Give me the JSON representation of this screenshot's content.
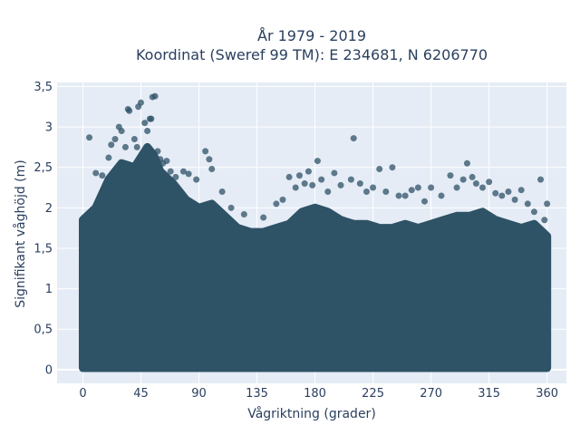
{
  "chart_data": {
    "type": "scatter",
    "title_line1": "År 1979 - 2019",
    "title_line2": "Koordinat (Sweref 99 TM): E 234681, N 6206770",
    "xlabel": "Vågriktning (grader)",
    "ylabel": "Signifikant våghöjd (m)",
    "xlim": [
      -20,
      375
    ],
    "ylim": [
      -0.17,
      3.55
    ],
    "xticks": [
      0,
      45,
      90,
      135,
      180,
      225,
      270,
      315,
      360
    ],
    "yticks": [
      0,
      0.5,
      1,
      1.5,
      2,
      2.5,
      3,
      3.5
    ],
    "ytick_labels": [
      "0",
      "0,5",
      "1",
      "1,5",
      "2",
      "2,5",
      "3",
      "3,5"
    ],
    "grid": true,
    "marker_color": "#2e5266",
    "background_color": "#e5ecf6",
    "upper_envelope": [
      [
        0,
        1.85
      ],
      [
        10,
        2.0
      ],
      [
        20,
        2.35
      ],
      [
        30,
        2.55
      ],
      [
        40,
        2.5
      ],
      [
        50,
        2.75
      ],
      [
        55,
        2.65
      ],
      [
        60,
        2.45
      ],
      [
        70,
        2.3
      ],
      [
        80,
        2.1
      ],
      [
        90,
        2.0
      ],
      [
        100,
        2.05
      ],
      [
        110,
        1.9
      ],
      [
        120,
        1.75
      ],
      [
        130,
        1.7
      ],
      [
        140,
        1.7
      ],
      [
        150,
        1.75
      ],
      [
        160,
        1.8
      ],
      [
        170,
        1.95
      ],
      [
        180,
        2.0
      ],
      [
        190,
        1.95
      ],
      [
        200,
        1.85
      ],
      [
        210,
        1.8
      ],
      [
        220,
        1.8
      ],
      [
        230,
        1.75
      ],
      [
        240,
        1.75
      ],
      [
        250,
        1.8
      ],
      [
        260,
        1.75
      ],
      [
        270,
        1.8
      ],
      [
        280,
        1.85
      ],
      [
        290,
        1.9
      ],
      [
        300,
        1.9
      ],
      [
        310,
        1.95
      ],
      [
        320,
        1.85
      ],
      [
        330,
        1.8
      ],
      [
        340,
        1.75
      ],
      [
        350,
        1.8
      ],
      [
        360,
        1.65
      ]
    ],
    "outlier_points": [
      [
        5,
        2.87
      ],
      [
        10,
        2.43
      ],
      [
        15,
        2.4
      ],
      [
        20,
        2.62
      ],
      [
        22,
        2.78
      ],
      [
        25,
        2.85
      ],
      [
        28,
        3.0
      ],
      [
        30,
        2.95
      ],
      [
        33,
        2.75
      ],
      [
        35,
        3.22
      ],
      [
        36,
        3.2
      ],
      [
        40,
        2.85
      ],
      [
        42,
        2.75
      ],
      [
        43,
        3.25
      ],
      [
        45,
        3.3
      ],
      [
        48,
        3.05
      ],
      [
        50,
        2.95
      ],
      [
        52,
        3.1
      ],
      [
        53,
        3.1
      ],
      [
        54,
        3.37
      ],
      [
        56,
        3.38
      ],
      [
        58,
        2.7
      ],
      [
        60,
        2.6
      ],
      [
        62,
        2.55
      ],
      [
        65,
        2.58
      ],
      [
        68,
        2.45
      ],
      [
        72,
        2.38
      ],
      [
        78,
        2.45
      ],
      [
        82,
        2.42
      ],
      [
        88,
        2.35
      ],
      [
        95,
        2.7
      ],
      [
        98,
        2.6
      ],
      [
        100,
        2.48
      ],
      [
        108,
        2.2
      ],
      [
        115,
        2.0
      ],
      [
        125,
        1.92
      ],
      [
        140,
        1.88
      ],
      [
        150,
        2.05
      ],
      [
        155,
        2.1
      ],
      [
        160,
        2.38
      ],
      [
        165,
        2.25
      ],
      [
        168,
        2.4
      ],
      [
        172,
        2.3
      ],
      [
        175,
        2.45
      ],
      [
        178,
        2.28
      ],
      [
        182,
        2.58
      ],
      [
        185,
        2.35
      ],
      [
        190,
        2.2
      ],
      [
        195,
        2.43
      ],
      [
        200,
        2.28
      ],
      [
        208,
        2.35
      ],
      [
        210,
        2.86
      ],
      [
        215,
        2.3
      ],
      [
        220,
        2.2
      ],
      [
        225,
        2.25
      ],
      [
        230,
        2.48
      ],
      [
        235,
        2.2
      ],
      [
        240,
        2.5
      ],
      [
        245,
        2.15
      ],
      [
        250,
        2.15
      ],
      [
        255,
        2.22
      ],
      [
        260,
        2.25
      ],
      [
        265,
        2.08
      ],
      [
        270,
        2.25
      ],
      [
        278,
        2.15
      ],
      [
        285,
        2.4
      ],
      [
        290,
        2.25
      ],
      [
        295,
        2.35
      ],
      [
        298,
        2.55
      ],
      [
        302,
        2.38
      ],
      [
        305,
        2.3
      ],
      [
        310,
        2.25
      ],
      [
        315,
        2.32
      ],
      [
        320,
        2.18
      ],
      [
        325,
        2.15
      ],
      [
        330,
        2.2
      ],
      [
        335,
        2.1
      ],
      [
        340,
        2.22
      ],
      [
        345,
        2.05
      ],
      [
        350,
        1.95
      ],
      [
        355,
        2.35
      ],
      [
        358,
        1.85
      ],
      [
        360,
        2.05
      ]
    ]
  }
}
